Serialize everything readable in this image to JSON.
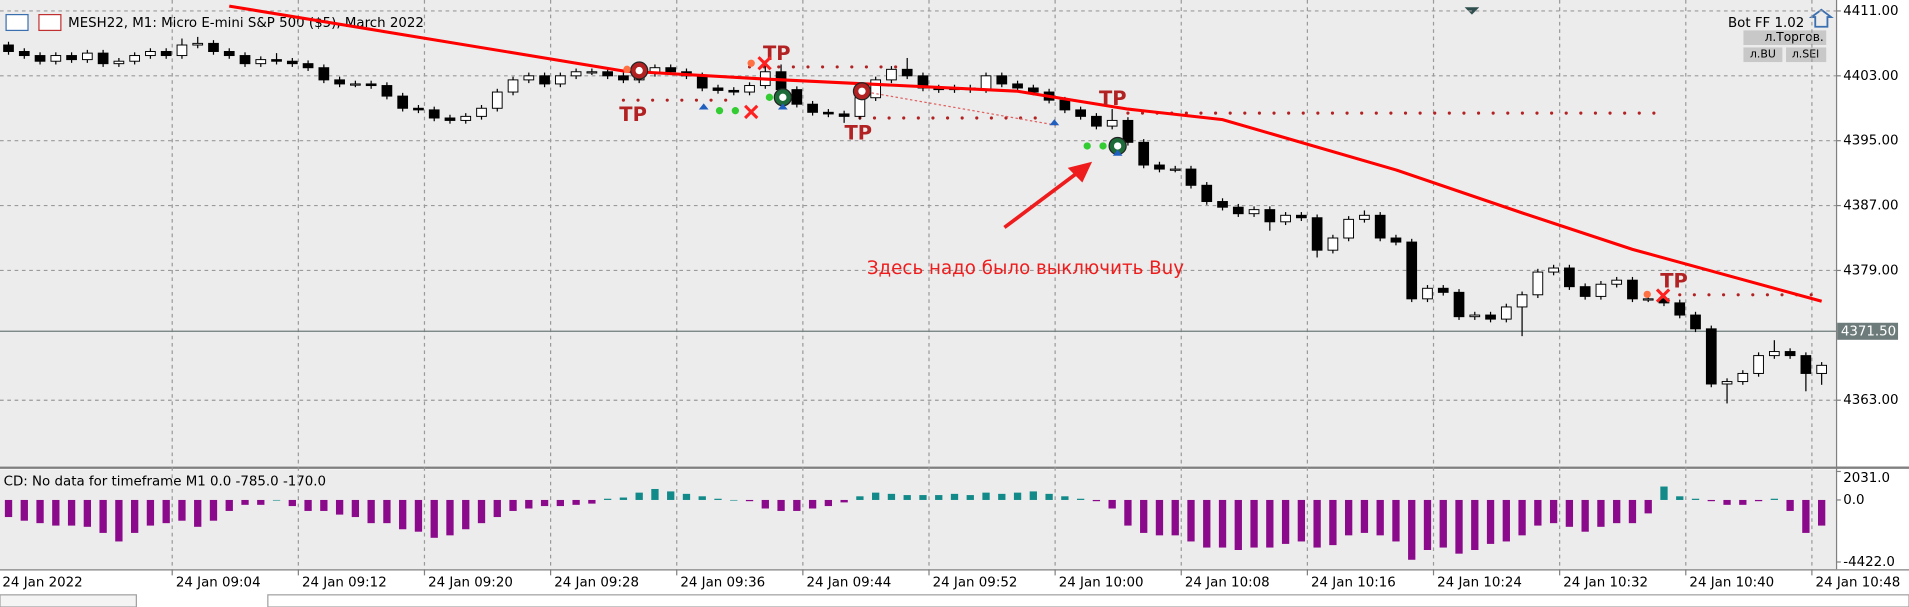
{
  "chart_data": [
    {
      "type": "candlestick",
      "title": "MESH22, M1:  Micro E-mini S&P 500 ($5), March 2022",
      "ohlc": [
        [
          4406.8,
          4407.2,
          4405.6,
          4406.0
        ],
        [
          4406.0,
          4406.4,
          4405.1,
          4405.5
        ],
        [
          4405.5,
          4405.9,
          4404.4,
          4404.8
        ],
        [
          4404.8,
          4405.9,
          4404.4,
          4405.5
        ],
        [
          4405.5,
          4405.9,
          4404.6,
          4405.0
        ],
        [
          4405.0,
          4406.2,
          4404.6,
          4405.8
        ],
        [
          4405.8,
          4406.2,
          4404.1,
          4404.5
        ],
        [
          4404.5,
          4405.2,
          4404.1,
          4404.8
        ],
        [
          4404.8,
          4405.9,
          4404.4,
          4405.5
        ],
        [
          4405.5,
          4406.4,
          4405.1,
          4406.0
        ],
        [
          4406.0,
          4406.4,
          4405.1,
          4405.5
        ],
        [
          4405.5,
          4407.6,
          4405.1,
          4406.8
        ],
        [
          4406.8,
          4407.8,
          4406.4,
          4407.0
        ],
        [
          4407.0,
          4407.4,
          4405.6,
          4406.0
        ],
        [
          4406.0,
          4406.4,
          4405.1,
          4405.5
        ],
        [
          4405.5,
          4405.9,
          4404.1,
          4404.5
        ],
        [
          4404.5,
          4405.4,
          4404.1,
          4405.0
        ],
        [
          4405.0,
          4405.8,
          4404.4,
          4404.8
        ],
        [
          4404.8,
          4405.2,
          4404.1,
          4404.5
        ],
        [
          4404.5,
          4404.9,
          4403.6,
          4404.0
        ],
        [
          4404.0,
          4404.4,
          4402.1,
          4402.5
        ],
        [
          4402.5,
          4402.9,
          4401.6,
          4402.0
        ],
        [
          4402.0,
          4402.4,
          4401.6,
          4402.0
        ],
        [
          4402.0,
          4402.4,
          4401.4,
          4401.8
        ],
        [
          4401.8,
          4402.2,
          4400.1,
          4400.5
        ],
        [
          4400.5,
          4400.9,
          4398.6,
          4399.0
        ],
        [
          4399.0,
          4399.4,
          4398.4,
          4398.8
        ],
        [
          4398.8,
          4399.2,
          4397.4,
          4397.8
        ],
        [
          4397.8,
          4398.2,
          4397.1,
          4397.5
        ],
        [
          4397.5,
          4398.4,
          4397.1,
          4398.0
        ],
        [
          4398.0,
          4399.4,
          4397.6,
          4399.0
        ],
        [
          4399.0,
          4401.4,
          4398.6,
          4401.0
        ],
        [
          4401.0,
          4402.9,
          4400.6,
          4402.5
        ],
        [
          4402.5,
          4403.4,
          4402.1,
          4403.0
        ],
        [
          4403.0,
          4403.4,
          4401.6,
          4402.0
        ],
        [
          4402.0,
          4403.4,
          4401.6,
          4403.0
        ],
        [
          4403.0,
          4403.9,
          4402.6,
          4403.5
        ],
        [
          4403.5,
          4403.9,
          4403.1,
          4403.5
        ],
        [
          4403.5,
          4403.9,
          4402.6,
          4403.0
        ],
        [
          4403.0,
          4403.4,
          4402.1,
          4402.5
        ],
        [
          4402.5,
          4403.7,
          4402.1,
          4403.3
        ],
        [
          4403.3,
          4404.4,
          4402.9,
          4404.0
        ],
        [
          4404.0,
          4404.4,
          4403.1,
          4403.5
        ],
        [
          4403.5,
          4403.9,
          4402.6,
          4403.0
        ],
        [
          4403.0,
          4403.4,
          4401.1,
          4401.5
        ],
        [
          4401.5,
          4401.9,
          4400.8,
          4401.2
        ],
        [
          4401.2,
          4401.6,
          4400.6,
          4401.0
        ],
        [
          4401.0,
          4402.2,
          4400.6,
          4401.8
        ],
        [
          4401.8,
          4404.9,
          4401.4,
          4403.5
        ],
        [
          4403.5,
          4404.4,
          4400.9,
          4401.3
        ],
        [
          4401.3,
          4401.7,
          4399.1,
          4399.5
        ],
        [
          4399.5,
          4399.9,
          4398.1,
          4398.5
        ],
        [
          4398.5,
          4398.9,
          4397.9,
          4398.3
        ],
        [
          4398.3,
          4398.7,
          4397.2,
          4398.0
        ],
        [
          4398.0,
          4400.7,
          4397.6,
          4400.3
        ],
        [
          4400.3,
          4402.9,
          4399.9,
          4402.5
        ],
        [
          4402.5,
          4404.2,
          4402.1,
          4403.8
        ],
        [
          4403.8,
          4405.2,
          4402.6,
          4403.0
        ],
        [
          4403.0,
          4403.4,
          4401.1,
          4401.5
        ],
        [
          4401.5,
          4401.9,
          4400.9,
          4401.3
        ],
        [
          4401.3,
          4401.9,
          4400.9,
          4401.5
        ],
        [
          4401.5,
          4401.9,
          4400.9,
          4401.3
        ],
        [
          4401.3,
          4403.4,
          4400.9,
          4403.0
        ],
        [
          4403.0,
          4403.4,
          4401.6,
          4402.0
        ],
        [
          4402.0,
          4402.4,
          4401.1,
          4401.5
        ],
        [
          4401.5,
          4401.9,
          4400.6,
          4401.0
        ],
        [
          4401.0,
          4401.4,
          4399.6,
          4400.0
        ],
        [
          4400.0,
          4400.4,
          4398.4,
          4398.8
        ],
        [
          4398.8,
          4399.2,
          4397.6,
          4398.0
        ],
        [
          4398.0,
          4398.4,
          4396.4,
          4396.8
        ],
        [
          4396.8,
          4398.9,
          4396.4,
          4397.5
        ],
        [
          4397.5,
          4397.9,
          4394.4,
          4394.8
        ],
        [
          4394.8,
          4395.2,
          4391.6,
          4392.0
        ],
        [
          4392.0,
          4392.4,
          4391.1,
          4391.5
        ],
        [
          4391.5,
          4391.9,
          4391.1,
          4391.5
        ],
        [
          4391.5,
          4391.9,
          4389.1,
          4389.5
        ],
        [
          4389.5,
          4389.9,
          4387.1,
          4387.5
        ],
        [
          4387.5,
          4387.9,
          4386.4,
          4386.8
        ],
        [
          4386.8,
          4387.2,
          4385.6,
          4386.0
        ],
        [
          4386.0,
          4386.9,
          4385.6,
          4386.5
        ],
        [
          4386.5,
          4386.9,
          4383.9,
          4385.0
        ],
        [
          4385.0,
          4386.2,
          4384.6,
          4385.8
        ],
        [
          4385.8,
          4386.2,
          4385.1,
          4385.5
        ],
        [
          4385.5,
          4385.9,
          4380.6,
          4381.5
        ],
        [
          4381.5,
          4383.4,
          4381.1,
          4383.0
        ],
        [
          4383.0,
          4385.7,
          4382.6,
          4385.3
        ],
        [
          4385.3,
          4386.4,
          4384.9,
          4385.8
        ],
        [
          4385.8,
          4386.2,
          4382.6,
          4383.0
        ],
        [
          4383.0,
          4383.4,
          4382.1,
          4382.5
        ],
        [
          4382.5,
          4382.9,
          4375.1,
          4375.5
        ],
        [
          4375.5,
          4377.2,
          4375.1,
          4376.8
        ],
        [
          4376.8,
          4377.2,
          4375.9,
          4376.3
        ],
        [
          4376.3,
          4376.7,
          4372.9,
          4373.3
        ],
        [
          4373.3,
          4373.9,
          4372.9,
          4373.5
        ],
        [
          4373.5,
          4373.9,
          4372.6,
          4373.0
        ],
        [
          4373.0,
          4374.9,
          4372.6,
          4374.5
        ],
        [
          4374.5,
          4376.4,
          4370.9,
          4376.0
        ],
        [
          4376.0,
          4379.2,
          4375.6,
          4378.8
        ],
        [
          4378.8,
          4379.7,
          4378.4,
          4379.3
        ],
        [
          4379.3,
          4379.7,
          4376.6,
          4377.0
        ],
        [
          4377.0,
          4377.4,
          4375.4,
          4375.8
        ],
        [
          4375.8,
          4377.7,
          4375.4,
          4377.3
        ],
        [
          4377.3,
          4378.2,
          4376.9,
          4377.8
        ],
        [
          4377.8,
          4378.2,
          4375.1,
          4375.5
        ],
        [
          4375.5,
          4376.2,
          4375.1,
          4375.5
        ],
        [
          4375.5,
          4375.9,
          4374.6,
          4375.0
        ],
        [
          4375.0,
          4375.4,
          4373.1,
          4373.5
        ],
        [
          4373.5,
          4373.9,
          4371.4,
          4371.8
        ],
        [
          4371.8,
          4372.2,
          4364.6,
          4365.0
        ],
        [
          4365.0,
          4365.7,
          4362.6,
          4365.3
        ],
        [
          4365.3,
          4366.7,
          4364.9,
          4366.3
        ],
        [
          4366.3,
          4368.9,
          4365.9,
          4368.5
        ],
        [
          4368.5,
          4370.4,
          4368.1,
          4369.0
        ],
        [
          4369.0,
          4369.4,
          4368.1,
          4368.5
        ],
        [
          4368.5,
          4368.9,
          4364.1,
          4366.3
        ],
        [
          4366.3,
          4367.7,
          4364.9,
          4367.3
        ]
      ],
      "up_color": "#ffffff",
      "down_color": "#000000",
      "ylim": [
        4354.9,
        4412.35
      ],
      "yticks": [
        {
          "value": 4411,
          "label": "4411.00"
        },
        {
          "value": 4403,
          "label": "4403.00"
        },
        {
          "value": 4395,
          "label": "4395.00"
        },
        {
          "value": 4387,
          "label": "4387.00"
        },
        {
          "value": 4379,
          "label": "4379.00"
        },
        {
          "value": 4363,
          "label": "4363.00"
        }
      ],
      "xticks": [
        {
          "value": 0,
          "label": "24 Jan 2022"
        },
        {
          "value": 11,
          "label": "24 Jan 09:04"
        },
        {
          "value": 19,
          "label": "24 Jan 09:12"
        },
        {
          "value": 27,
          "label": "24 Jan 09:20"
        },
        {
          "value": 35,
          "label": "24 Jan 09:28"
        },
        {
          "value": 43,
          "label": "24 Jan 09:36"
        },
        {
          "value": 51,
          "label": "24 Jan 09:44"
        },
        {
          "value": 59,
          "label": "24 Jan 09:52"
        },
        {
          "value": 67,
          "label": "24 Jan 10:00"
        },
        {
          "value": 75,
          "label": "24 Jan 10:08"
        },
        {
          "value": 83,
          "label": "24 Jan 10:16"
        },
        {
          "value": 91,
          "label": "24 Jan 10:24"
        },
        {
          "value": 99,
          "label": "24 Jan 10:32"
        },
        {
          "value": 107,
          "label": "24 Jan 10:40"
        },
        {
          "value": 115,
          "label": "24 Jan 10:48"
        }
      ],
      "grid": true,
      "ma": {
        "color": "#ff0000",
        "x": [
          14,
          39,
          48,
          64,
          71,
          77,
          88,
          96,
          103,
          115
        ],
        "values": [
          4411.6,
          4403.6,
          4402.6,
          4401.1,
          4398.9,
          4397.6,
          4391.4,
          4386.1,
          4381.6,
          4375.2
        ]
      },
      "levels": [
        {
          "from": 39,
          "to": 46,
          "value": 4400.0
        },
        {
          "from": 47,
          "to": 57,
          "value": 4404.1
        },
        {
          "from": 54,
          "to": 66,
          "value": 4397.8
        },
        {
          "from": 71,
          "to": 105,
          "value": 4398.4
        },
        {
          "from": 106,
          "to": 115,
          "value": 4376.0
        }
      ],
      "level_color": "#b22222",
      "current_price": {
        "value": 4371.5,
        "label": "4371.50"
      },
      "annotation": "Здесь надо было выключить Buy",
      "trade_marks": [
        "TP",
        "TP",
        "TP",
        "TP",
        "TP"
      ]
    },
    {
      "type": "bar",
      "title": "CD: No data for timeframe M1 0.0 -785.0 -170.0",
      "values": [
        -1218,
        -1479,
        -1653,
        -1827,
        -1827,
        -1914,
        -2349,
        -2958,
        -2349,
        -1827,
        -1653,
        -1479,
        -1914,
        -1479,
        -783,
        -348,
        -348,
        0,
        -435,
        -783,
        -783,
        -1044,
        -1218,
        -1653,
        -1653,
        -2088,
        -2262,
        -2697,
        -2523,
        -2088,
        -1653,
        -1218,
        -783,
        -609,
        -435,
        -435,
        -348,
        -261,
        87,
        174,
        522,
        783,
        609,
        435,
        261,
        87,
        0,
        -87,
        -609,
        -783,
        -783,
        -609,
        -435,
        -174,
        261,
        522,
        435,
        348,
        348,
        348,
        435,
        348,
        522,
        435,
        522,
        609,
        435,
        261,
        87,
        -87,
        -609,
        -1827,
        -2349,
        -2523,
        -2523,
        -2958,
        -3393,
        -3393,
        -3567,
        -3393,
        -3393,
        -3132,
        -2958,
        -3393,
        -3219,
        -2523,
        -2349,
        -2523,
        -2958,
        -4263,
        -3567,
        -3393,
        -3828,
        -3567,
        -3132,
        -2958,
        -2523,
        -1827,
        -1653,
        -1914,
        -2262,
        -1914,
        -1653,
        -1653,
        -957,
        957,
        261,
        87,
        -87,
        -348,
        -348,
        -87,
        87,
        -783,
        -2349,
        -1827
      ],
      "pos_color": "#138a8a",
      "neg_color": "#8b0a8b",
      "ylim": [
        -4942,
        2168
      ],
      "yticks": [
        {
          "value": 2031,
          "label": "2031.0"
        },
        {
          "value": 0,
          "label": "0.0"
        },
        {
          "value": -4422,
          "label": "-4422.0"
        }
      ]
    }
  ],
  "expert": {
    "name": "Bot FF 1.02",
    "buttons": [
      "л.Торгов.",
      "л.BU",
      "л.SEl"
    ]
  }
}
